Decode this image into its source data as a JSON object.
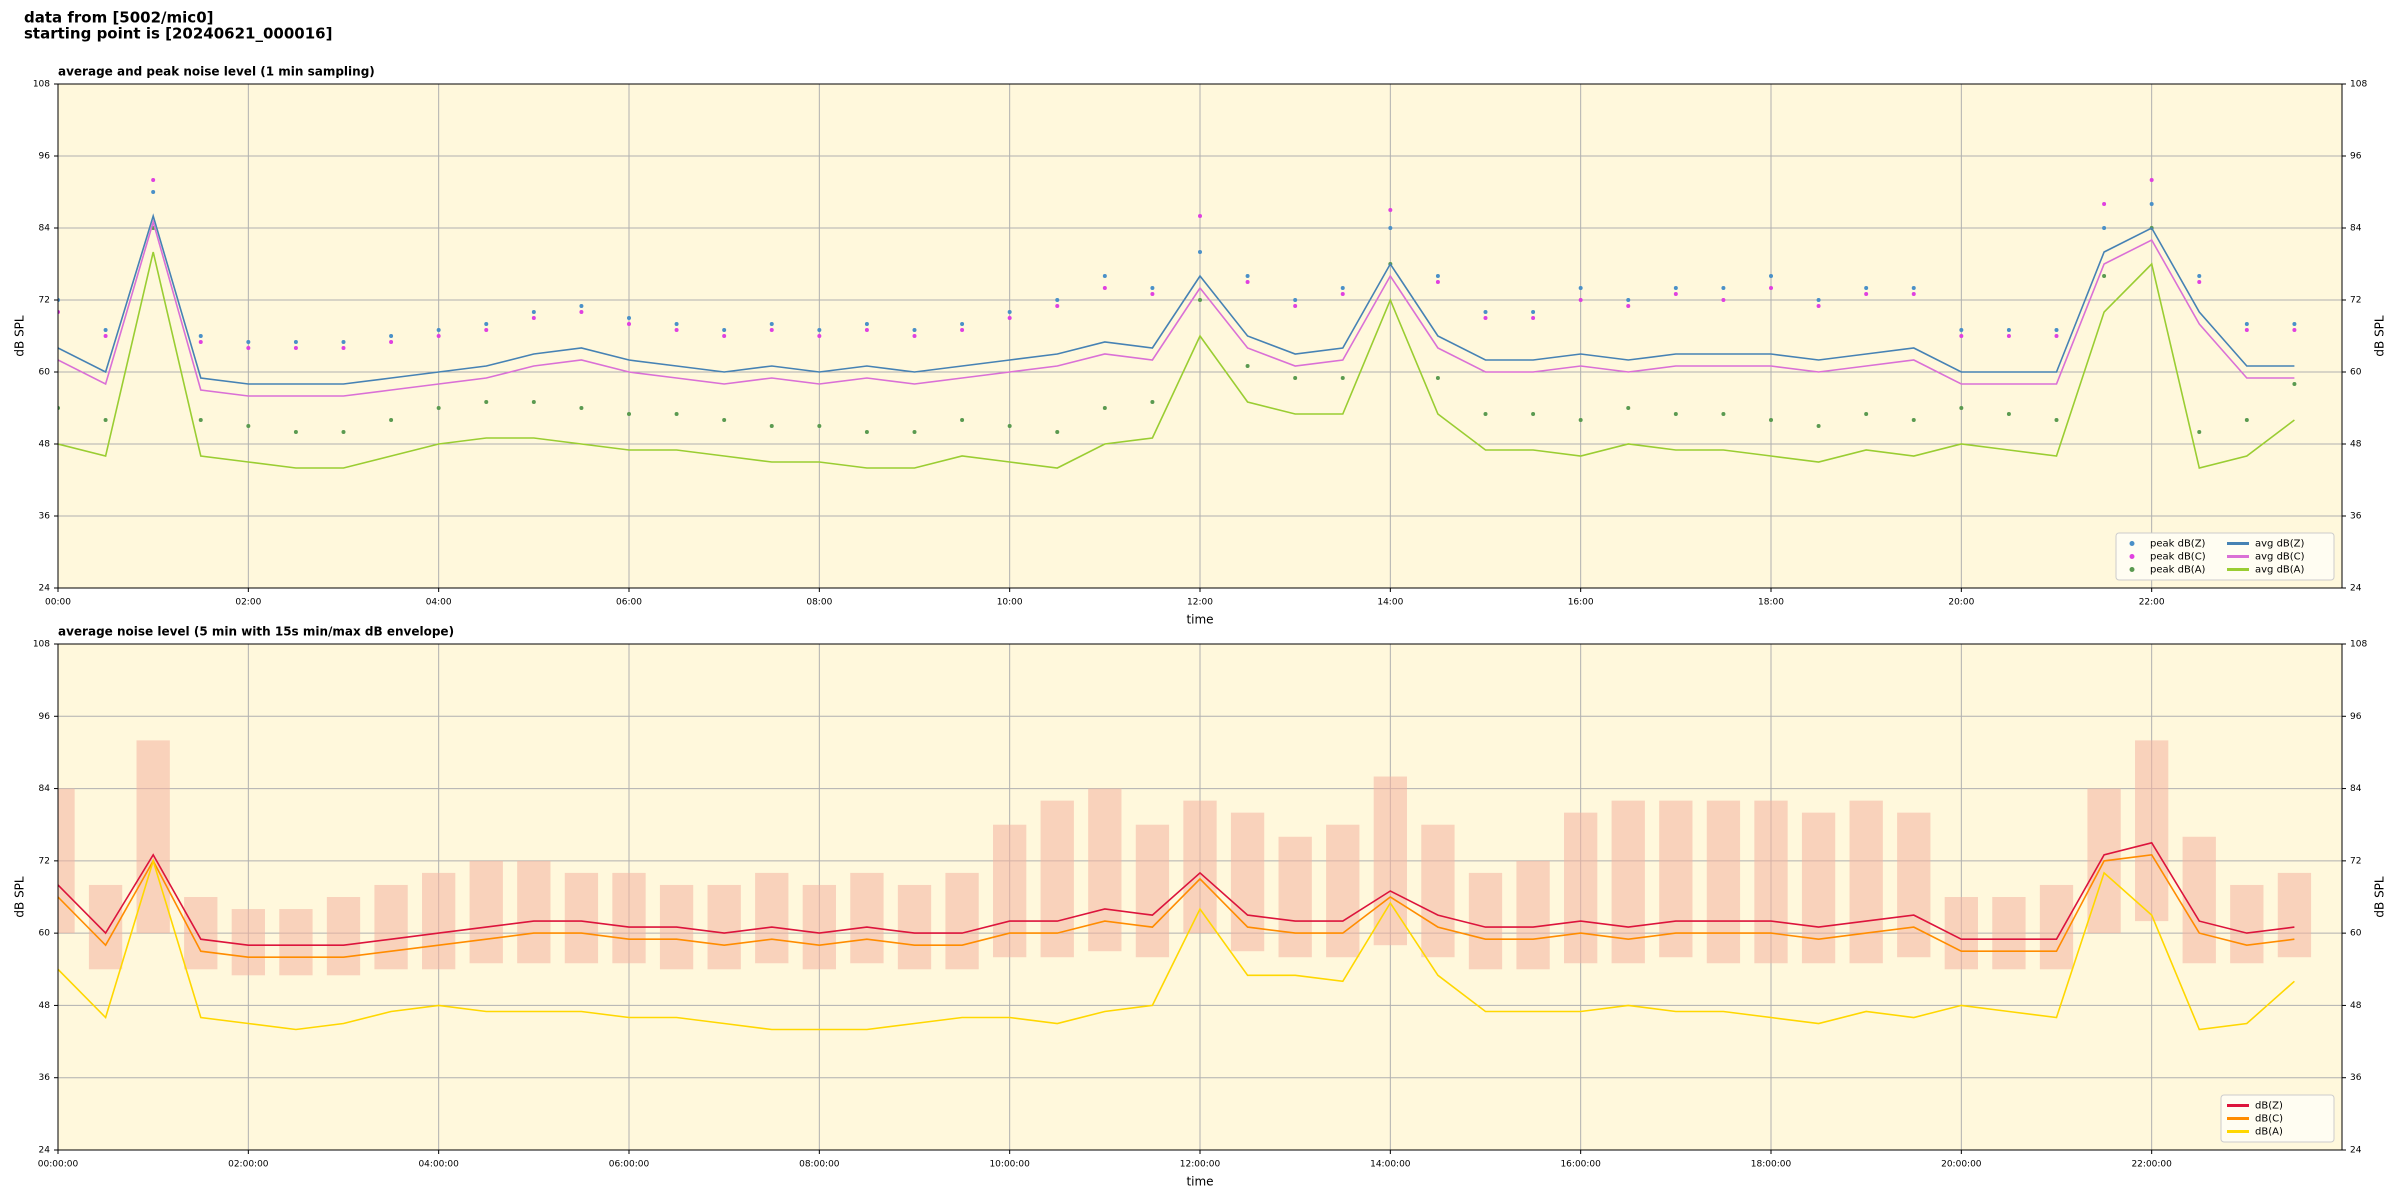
{
  "header": {
    "lines": [
      "data from [5002/mic0]",
      "starting point is [20240621_000016]"
    ]
  },
  "chart_data": [
    {
      "type": "line",
      "title": "average and peak noise level (1 min sampling)",
      "x_label": "time",
      "y_label": "dB SPL",
      "x": [
        0,
        0.5,
        1,
        1.5,
        2,
        2.5,
        3,
        3.5,
        4,
        4.5,
        5,
        5.5,
        6,
        6.5,
        7,
        7.5,
        8,
        8.5,
        9,
        9.5,
        10,
        10.5,
        11,
        11.5,
        12,
        12.5,
        13,
        13.5,
        14,
        14.5,
        15,
        15.5,
        16,
        16.5,
        17,
        17.5,
        18,
        18.5,
        19,
        19.5,
        20,
        20.5,
        21,
        21.5,
        22,
        22.5,
        23,
        23.5
      ],
      "xlim": [
        0,
        24
      ],
      "xticks": [
        {
          "value": 0,
          "label": "00:00"
        },
        {
          "value": 2,
          "label": "02:00"
        },
        {
          "value": 4,
          "label": "04:00"
        },
        {
          "value": 6,
          "label": "06:00"
        },
        {
          "value": 8,
          "label": "08:00"
        },
        {
          "value": 10,
          "label": "10:00"
        },
        {
          "value": 12,
          "label": "12:00"
        },
        {
          "value": 14,
          "label": "14:00"
        },
        {
          "value": 16,
          "label": "16:00"
        },
        {
          "value": 18,
          "label": "18:00"
        },
        {
          "value": 20,
          "label": "20:00"
        },
        {
          "value": 22,
          "label": "22:00"
        }
      ],
      "ylim": [
        24,
        108
      ],
      "yticks": [
        24,
        36,
        48,
        60,
        72,
        84,
        96,
        108
      ],
      "grid": true,
      "legend": "lower right",
      "series": [
        {
          "name": "peak dB(Z)",
          "mode": "markers",
          "color": "#4a90c8",
          "values": [
            72,
            67,
            90,
            66,
            65,
            65,
            65,
            66,
            67,
            68,
            70,
            71,
            69,
            68,
            67,
            68,
            67,
            68,
            67,
            68,
            70,
            72,
            76,
            74,
            80,
            76,
            72,
            74,
            84,
            76,
            70,
            70,
            74,
            72,
            74,
            74,
            76,
            72,
            74,
            74,
            67,
            67,
            67,
            84,
            88,
            76,
            68,
            68
          ]
        },
        {
          "name": "peak dB(C)",
          "mode": "markers",
          "color": "#e040e0",
          "values": [
            70,
            66,
            92,
            65,
            64,
            64,
            64,
            65,
            66,
            67,
            69,
            70,
            68,
            67,
            66,
            67,
            66,
            67,
            66,
            67,
            69,
            71,
            74,
            73,
            86,
            75,
            71,
            73,
            87,
            75,
            69,
            69,
            72,
            71,
            73,
            72,
            74,
            71,
            73,
            73,
            66,
            66,
            66,
            88,
            92,
            75,
            67,
            67
          ]
        },
        {
          "name": "peak dB(A)",
          "mode": "markers",
          "color": "#5a9a50",
          "values": [
            54,
            52,
            84,
            52,
            51,
            50,
            50,
            52,
            54,
            55,
            55,
            54,
            53,
            53,
            52,
            51,
            51,
            50,
            50,
            52,
            51,
            50,
            54,
            55,
            72,
            61,
            59,
            59,
            78,
            59,
            53,
            53,
            52,
            54,
            53,
            53,
            52,
            51,
            53,
            52,
            54,
            53,
            52,
            76,
            84,
            50,
            52,
            58
          ]
        },
        {
          "name": "avg dB(Z)",
          "mode": "line",
          "color": "#4682b4",
          "values": [
            64,
            60,
            86,
            59,
            58,
            58,
            58,
            59,
            60,
            61,
            63,
            64,
            62,
            61,
            60,
            61,
            60,
            61,
            60,
            61,
            62,
            63,
            65,
            64,
            76,
            66,
            63,
            64,
            78,
            66,
            62,
            62,
            63,
            62,
            63,
            63,
            63,
            62,
            63,
            64,
            60,
            60,
            60,
            80,
            84,
            70,
            61,
            61
          ]
        },
        {
          "name": "avg dB(C)",
          "mode": "line",
          "color": "#da70d6",
          "values": [
            62,
            58,
            85,
            57,
            56,
            56,
            56,
            57,
            58,
            59,
            61,
            62,
            60,
            59,
            58,
            59,
            58,
            59,
            58,
            59,
            60,
            61,
            63,
            62,
            74,
            64,
            61,
            62,
            76,
            64,
            60,
            60,
            61,
            60,
            61,
            61,
            61,
            60,
            61,
            62,
            58,
            58,
            58,
            78,
            82,
            68,
            59,
            59
          ]
        },
        {
          "name": "avg dB(A)",
          "mode": "line",
          "color": "#9acd32",
          "values": [
            48,
            46,
            80,
            46,
            45,
            44,
            44,
            46,
            48,
            49,
            49,
            48,
            47,
            47,
            46,
            45,
            45,
            44,
            44,
            46,
            45,
            44,
            48,
            49,
            66,
            55,
            53,
            53,
            72,
            53,
            47,
            47,
            46,
            48,
            47,
            47,
            46,
            45,
            47,
            46,
            48,
            47,
            46,
            70,
            78,
            44,
            46,
            52
          ]
        }
      ]
    },
    {
      "type": "line",
      "title": "average noise level (5 min with 15s min/max dB envelope)",
      "x_label": "time",
      "y_label": "dB SPL",
      "x": [
        0,
        0.5,
        1,
        1.5,
        2,
        2.5,
        3,
        3.5,
        4,
        4.5,
        5,
        5.5,
        6,
        6.5,
        7,
        7.5,
        8,
        8.5,
        9,
        9.5,
        10,
        10.5,
        11,
        11.5,
        12,
        12.5,
        13,
        13.5,
        14,
        14.5,
        15,
        15.5,
        16,
        16.5,
        17,
        17.5,
        18,
        18.5,
        19,
        19.5,
        20,
        20.5,
        21,
        21.5,
        22,
        22.5,
        23,
        23.5
      ],
      "xlim": [
        0,
        24
      ],
      "xticks": [
        {
          "value": 0,
          "label": "00:00:00"
        },
        {
          "value": 2,
          "label": "02:00:00"
        },
        {
          "value": 4,
          "label": "04:00:00"
        },
        {
          "value": 6,
          "label": "06:00:00"
        },
        {
          "value": 8,
          "label": "08:00:00"
        },
        {
          "value": 10,
          "label": "10:00:00"
        },
        {
          "value": 12,
          "label": "12:00:00"
        },
        {
          "value": 14,
          "label": "14:00:00"
        },
        {
          "value": 16,
          "label": "16:00:00"
        },
        {
          "value": 18,
          "label": "18:00:00"
        },
        {
          "value": 20,
          "label": "20:00:00"
        },
        {
          "value": 22,
          "label": "22:00:00"
        }
      ],
      "ylim": [
        24,
        108
      ],
      "yticks": [
        24,
        36,
        48,
        60,
        72,
        84,
        96,
        108
      ],
      "grid": true,
      "legend": "lower right",
      "band": {
        "color": "#f4b3a0",
        "lower": [
          60,
          54,
          60,
          54,
          53,
          53,
          53,
          54,
          54,
          55,
          55,
          55,
          55,
          54,
          54,
          55,
          54,
          55,
          54,
          54,
          56,
          56,
          57,
          56,
          60,
          57,
          56,
          56,
          58,
          56,
          54,
          54,
          55,
          55,
          56,
          55,
          55,
          55,
          55,
          56,
          54,
          54,
          54,
          60,
          62,
          55,
          55,
          56
        ],
        "upper": [
          84,
          68,
          92,
          66,
          64,
          64,
          66,
          68,
          70,
          72,
          72,
          70,
          70,
          68,
          68,
          70,
          68,
          70,
          68,
          70,
          78,
          82,
          84,
          78,
          82,
          80,
          76,
          78,
          86,
          78,
          70,
          72,
          80,
          82,
          82,
          82,
          82,
          80,
          82,
          80,
          66,
          66,
          68,
          84,
          92,
          76,
          68,
          70
        ]
      },
      "series": [
        {
          "name": "dB(Z)",
          "mode": "line",
          "color": "#dc143c",
          "values": [
            68,
            60,
            73,
            59,
            58,
            58,
            58,
            59,
            60,
            61,
            62,
            62,
            61,
            61,
            60,
            61,
            60,
            61,
            60,
            60,
            62,
            62,
            64,
            63,
            70,
            63,
            62,
            62,
            67,
            63,
            61,
            61,
            62,
            61,
            62,
            62,
            62,
            61,
            62,
            63,
            59,
            59,
            59,
            73,
            75,
            62,
            60,
            61
          ]
        },
        {
          "name": "dB(C)",
          "mode": "line",
          "color": "#ff8c00",
          "values": [
            66,
            58,
            72,
            57,
            56,
            56,
            56,
            57,
            58,
            59,
            60,
            60,
            59,
            59,
            58,
            59,
            58,
            59,
            58,
            58,
            60,
            60,
            62,
            61,
            69,
            61,
            60,
            60,
            66,
            61,
            59,
            59,
            60,
            59,
            60,
            60,
            60,
            59,
            60,
            61,
            57,
            57,
            57,
            72,
            73,
            60,
            58,
            59
          ]
        },
        {
          "name": "dB(A)",
          "mode": "line",
          "color": "#ffd700",
          "values": [
            54,
            46,
            72,
            46,
            45,
            44,
            45,
            47,
            48,
            47,
            47,
            47,
            46,
            46,
            45,
            44,
            44,
            44,
            45,
            46,
            46,
            45,
            47,
            48,
            64,
            53,
            53,
            52,
            65,
            53,
            47,
            47,
            47,
            48,
            47,
            47,
            46,
            45,
            47,
            46,
            48,
            47,
            46,
            70,
            63,
            44,
            45,
            52
          ]
        }
      ]
    }
  ]
}
